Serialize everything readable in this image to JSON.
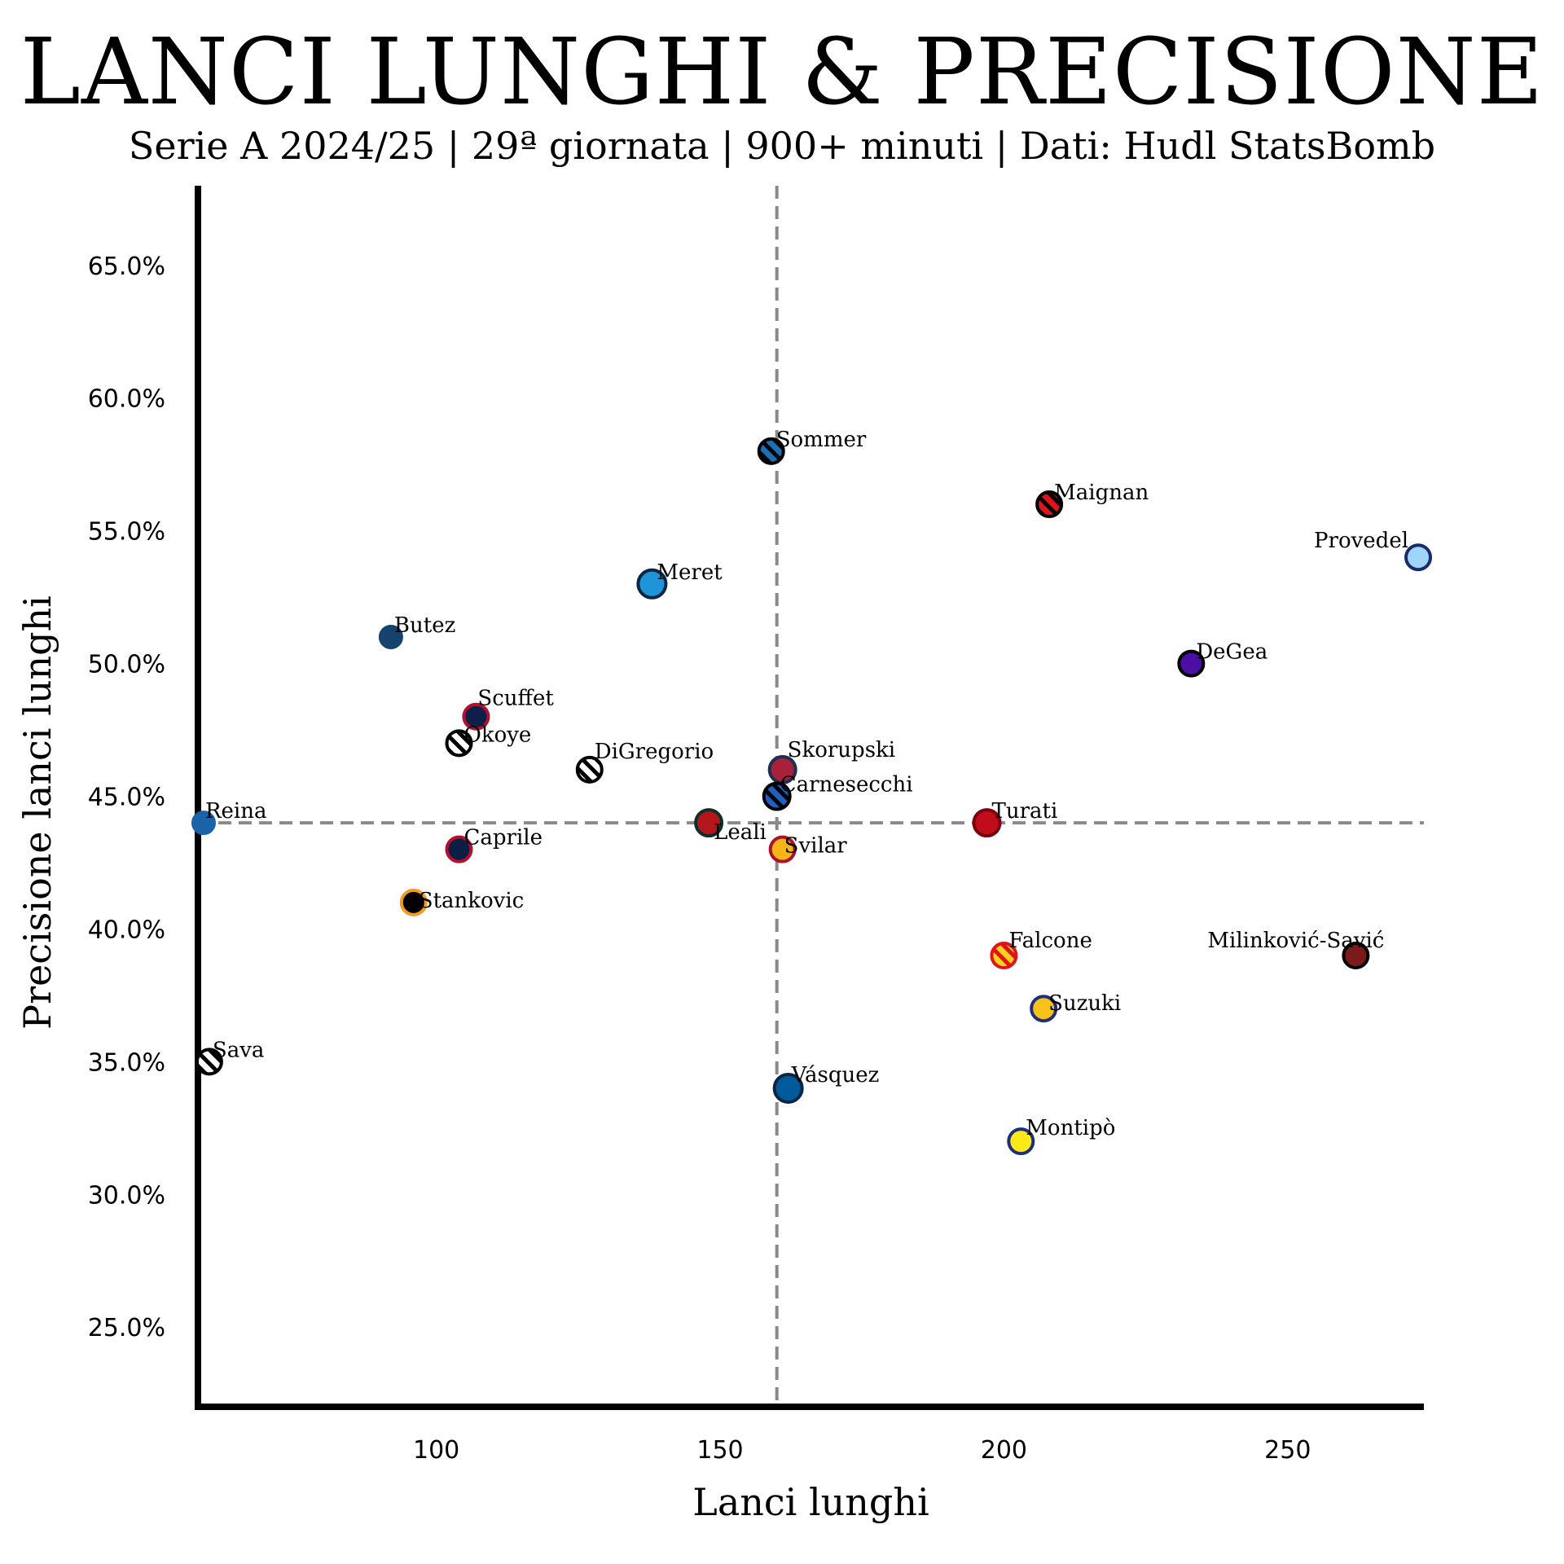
{
  "chart_data": {
    "type": "scatter",
    "title": "LANCI LUNGHI & PRECISIONE",
    "subtitle": "Serie A 2024/25 | 29ª giornata | 900+ minuti | Dati: Hudl StatsBomb",
    "xlabel": "Lanci lunghi",
    "ylabel": "Precisione lanci lunghi",
    "xlim": [
      58,
      274
    ],
    "ylim": [
      22,
      68
    ],
    "x_ticks": [
      100,
      150,
      200,
      250
    ],
    "x_tick_labels": [
      "100",
      "150",
      "200",
      "250"
    ],
    "y_ticks": [
      25,
      30,
      35,
      40,
      45,
      50,
      55,
      60,
      65
    ],
    "y_tick_labels": [
      "25.0%",
      "30.0%",
      "35.0%",
      "40.0%",
      "45.0%",
      "50.0%",
      "55.0%",
      "60.0%",
      "65.0%"
    ],
    "x_reference": 160,
    "y_reference": 44,
    "grid": false,
    "points": [
      {
        "name": "Sommer",
        "x": 159,
        "y": 58,
        "fill": "#1a6fb5",
        "edge": "#000000",
        "hatch": "#000000",
        "r": 15,
        "dx": 6,
        "dy": -6,
        "anchor": "start"
      },
      {
        "name": "Maignan",
        "x": 208,
        "y": 56,
        "fill": "#e0131a",
        "edge": "#000000",
        "hatch": "#000000",
        "r": 15,
        "dx": 6,
        "dy": -6,
        "anchor": "start"
      },
      {
        "name": "Provedel",
        "x": 273,
        "y": 54,
        "fill": "#9fd6f7",
        "edge": "#1a2a6c",
        "r": 15,
        "dx": -12,
        "dy": -12,
        "anchor": "end"
      },
      {
        "name": "Meret",
        "x": 138,
        "y": 53,
        "fill": "#1f95d9",
        "edge": "#0b2545",
        "r": 17,
        "dx": 6,
        "dy": -6,
        "anchor": "start"
      },
      {
        "name": "Butez",
        "x": 92,
        "y": 51,
        "fill": "#16436e",
        "edge": "#16436e",
        "r": 13,
        "dx": 4,
        "dy": -6,
        "anchor": "start"
      },
      {
        "name": "DeGea",
        "x": 233,
        "y": 50,
        "fill": "#4b0fa3",
        "edge": "#000000",
        "r": 15,
        "dx": 6,
        "dy": -6,
        "anchor": "start"
      },
      {
        "name": "Scuffet",
        "x": 107,
        "y": 48,
        "fill": "#0e1f4a",
        "edge": "#b50f2e",
        "r": 15,
        "dx": 2,
        "dy": -14,
        "anchor": "start"
      },
      {
        "name": "Okoye",
        "x": 104,
        "y": 47,
        "fill": "#ffffff",
        "edge": "#000000",
        "hatch": "#000000",
        "r": 15,
        "dx": 6,
        "dy": -2,
        "anchor": "start"
      },
      {
        "name": "DiGregorio",
        "x": 127,
        "y": 46,
        "fill": "#ffffff",
        "edge": "#000000",
        "hatch": "#000000",
        "r": 15,
        "dx": 6,
        "dy": -14,
        "anchor": "start"
      },
      {
        "name": "Skorupski",
        "x": 161,
        "y": 46,
        "fill": "#a8203a",
        "edge": "#1f2f52",
        "r": 16,
        "dx": 6,
        "dy": -16,
        "anchor": "start"
      },
      {
        "name": "Carnesecchi",
        "x": 160,
        "y": 45,
        "fill": "#1f5fbf",
        "edge": "#000000",
        "hatch": "#000000",
        "r": 16,
        "dx": 4,
        "dy": -6,
        "anchor": "start"
      },
      {
        "name": "Reina",
        "x": 59,
        "y": 44,
        "fill": "#1a63a8",
        "edge": "#1a63a8",
        "r": 13,
        "dx": 2,
        "dy": -6,
        "anchor": "start"
      },
      {
        "name": "Leali",
        "x": 148,
        "y": 44,
        "fill": "#b5161b",
        "edge": "#0c2f2a",
        "r": 16,
        "dx": 6,
        "dy": 20,
        "anchor": "start"
      },
      {
        "name": "Turati",
        "x": 197,
        "y": 44,
        "fill": "#c00c1b",
        "edge": "#7a0010",
        "r": 16,
        "dx": 6,
        "dy": -6,
        "anchor": "start"
      },
      {
        "name": "Caprile",
        "x": 104,
        "y": 43,
        "fill": "#0c1e44",
        "edge": "#b50f2e",
        "r": 15,
        "dx": 6,
        "dy": -6,
        "anchor": "start"
      },
      {
        "name": "Svilar",
        "x": 161,
        "y": 43,
        "fill": "#f7b51a",
        "edge": "#a8132d",
        "r": 15,
        "dx": 2,
        "dy": 4,
        "anchor": "start"
      },
      {
        "name": "Stankovic",
        "x": 96,
        "y": 41,
        "fill": "#000000",
        "edge": "#f39c1f",
        "r": 15,
        "dx": 6,
        "dy": 6,
        "anchor": "start"
      },
      {
        "name": "Falcone",
        "x": 200,
        "y": 39,
        "fill": "#f7d21a",
        "edge": "#e0131a",
        "hatch": "#e0131a",
        "r": 15,
        "dx": 6,
        "dy": -10,
        "anchor": "start"
      },
      {
        "name": "Milinković-Savić",
        "x": 262,
        "y": 39,
        "fill": "#7b1a1a",
        "edge": "#000000",
        "r": 15,
        "dx": 35,
        "dy": -10,
        "anchor": "end"
      },
      {
        "name": "Suzuki",
        "x": 207,
        "y": 37,
        "fill": "#f7c21a",
        "edge": "#1f2f7a",
        "r": 15,
        "dx": 6,
        "dy": 2,
        "anchor": "start"
      },
      {
        "name": "Sava",
        "x": 60,
        "y": 35,
        "fill": "#ffffff",
        "edge": "#000000",
        "hatch": "#000000",
        "r": 15,
        "dx": 4,
        "dy": -6,
        "anchor": "start"
      },
      {
        "name": "Vásquez",
        "x": 162,
        "y": 34,
        "fill": "#005a9c",
        "edge": "#0b2545",
        "r": 17,
        "dx": 4,
        "dy": -8,
        "anchor": "start"
      },
      {
        "name": "Montipò",
        "x": 203,
        "y": 32,
        "fill": "#fce91a",
        "edge": "#1f2f7a",
        "r": 15,
        "dx": 6,
        "dy": -8,
        "anchor": "start"
      }
    ]
  }
}
